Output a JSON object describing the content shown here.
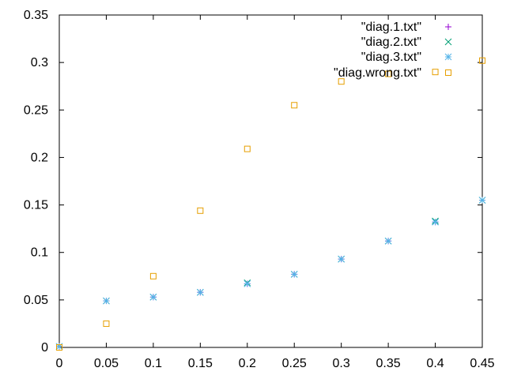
{
  "chart_data": {
    "type": "scatter",
    "title": "",
    "xlabel": "",
    "ylabel": "",
    "xlim": [
      0,
      0.45
    ],
    "ylim": [
      0,
      0.35
    ],
    "x_ticks": [
      "0",
      "0.05",
      "0.1",
      "0.15",
      "0.2",
      "0.25",
      "0.3",
      "0.35",
      "0.4",
      "0.45"
    ],
    "y_ticks": [
      "0",
      "0.05",
      "0.1",
      "0.15",
      "0.2",
      "0.25",
      "0.3",
      "0.35"
    ],
    "grid": false,
    "legend_position": "top-right",
    "series": [
      {
        "name": "\"diag.1.txt\"",
        "marker": "plus",
        "color": "#9400d3",
        "points": [
          [
            0,
            0.001
          ],
          [
            0.05,
            0.049
          ],
          [
            0.1,
            0.053
          ],
          [
            0.15,
            0.058
          ],
          [
            0.2,
            0.067
          ],
          [
            0.25,
            0.077
          ],
          [
            0.3,
            0.093
          ],
          [
            0.35,
            0.112
          ],
          [
            0.4,
            0.132
          ],
          [
            0.45,
            0.155
          ]
        ]
      },
      {
        "name": "\"diag.2.txt\"",
        "marker": "cross",
        "color": "#009e73",
        "points": [
          [
            0,
            0.001
          ],
          [
            0.05,
            0.049
          ],
          [
            0.1,
            0.053
          ],
          [
            0.15,
            0.058
          ],
          [
            0.2,
            0.068
          ],
          [
            0.25,
            0.077
          ],
          [
            0.3,
            0.093
          ],
          [
            0.35,
            0.112
          ],
          [
            0.4,
            0.133
          ],
          [
            0.45,
            0.155
          ]
        ]
      },
      {
        "name": "\"diag.3.txt\"",
        "marker": "star",
        "color": "#56b4e9",
        "points": [
          [
            0,
            0.001
          ],
          [
            0.05,
            0.049
          ],
          [
            0.1,
            0.053
          ],
          [
            0.15,
            0.058
          ],
          [
            0.2,
            0.067
          ],
          [
            0.25,
            0.077
          ],
          [
            0.3,
            0.093
          ],
          [
            0.35,
            0.112
          ],
          [
            0.4,
            0.132
          ],
          [
            0.45,
            0.155
          ]
        ]
      },
      {
        "name": "\"diag.wrong.txt\"",
        "marker": "square",
        "color": "#e69f00",
        "points": [
          [
            0,
            0.0
          ],
          [
            0.05,
            0.025
          ],
          [
            0.1,
            0.075
          ],
          [
            0.15,
            0.144
          ],
          [
            0.2,
            0.209
          ],
          [
            0.25,
            0.255
          ],
          [
            0.3,
            0.28
          ],
          [
            0.35,
            0.288
          ],
          [
            0.4,
            0.29
          ],
          [
            0.45,
            0.302
          ]
        ]
      }
    ]
  }
}
